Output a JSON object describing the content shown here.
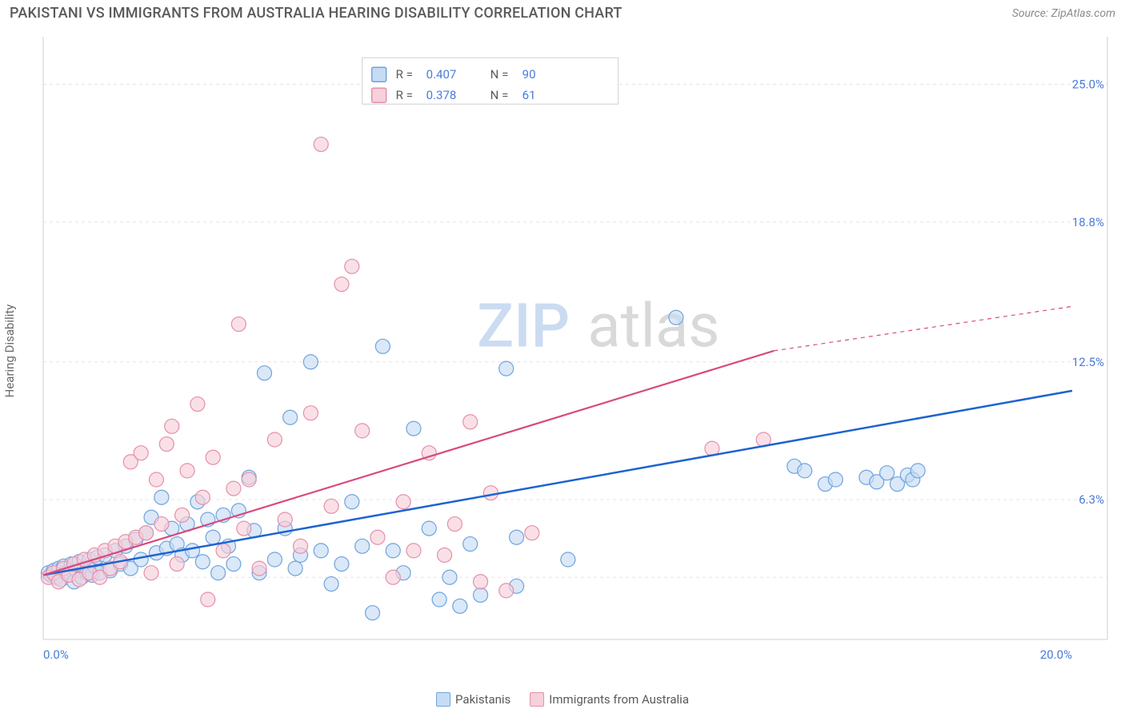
{
  "header": {
    "title": "PAKISTANI VS IMMIGRANTS FROM AUSTRALIA HEARING DISABILITY CORRELATION CHART",
    "source": "Source: ZipAtlas.com"
  },
  "chart": {
    "type": "scatter",
    "y_label": "Hearing Disability",
    "background_color": "#ffffff",
    "grid_color": "#e5e5e5",
    "axis_color": "#cfcfcf",
    "tick_label_color": "#4a7bd8",
    "tick_fontsize": 15,
    "xlim": [
      0,
      20
    ],
    "ylim": [
      0,
      27
    ],
    "x_ticks": [
      {
        "v": 0,
        "label": "0.0%"
      },
      {
        "v": 20,
        "label": "20.0%"
      }
    ],
    "y_ticks": [
      {
        "v": 6.3,
        "label": "6.3%"
      },
      {
        "v": 12.5,
        "label": "12.5%"
      },
      {
        "v": 18.8,
        "label": "18.8%"
      },
      {
        "v": 25.0,
        "label": "25.0%"
      }
    ],
    "y_grid_extra": [
      2.8
    ],
    "watermark": {
      "zip": "ZIP",
      "atlas": "atlas",
      "fontsize": 76
    },
    "series": [
      {
        "name": "Pakistanis",
        "marker_fill": "#c6dcf4",
        "marker_stroke": "#6fa3dd",
        "marker_radius": 9,
        "fill_opacity": 0.65,
        "trend_color": "#1e63d0",
        "trend_width": 2.5,
        "trend_start": {
          "x": 0,
          "y": 2.9
        },
        "trend_end": {
          "x": 20,
          "y": 11.2
        },
        "points": [
          [
            0.1,
            3.0
          ],
          [
            0.15,
            2.9
          ],
          [
            0.2,
            3.1
          ],
          [
            0.25,
            2.8
          ],
          [
            0.3,
            3.2
          ],
          [
            0.35,
            2.7
          ],
          [
            0.4,
            3.3
          ],
          [
            0.45,
            3.0
          ],
          [
            0.5,
            2.9
          ],
          [
            0.55,
            3.4
          ],
          [
            0.6,
            2.6
          ],
          [
            0.65,
            3.1
          ],
          [
            0.7,
            3.5
          ],
          [
            0.75,
            2.8
          ],
          [
            0.8,
            3.2
          ],
          [
            0.85,
            3.0
          ],
          [
            0.9,
            3.6
          ],
          [
            0.95,
            2.9
          ],
          [
            1.0,
            3.3
          ],
          [
            1.05,
            3.7
          ],
          [
            1.1,
            3.0
          ],
          [
            1.2,
            3.8
          ],
          [
            1.3,
            3.1
          ],
          [
            1.4,
            4.0
          ],
          [
            1.5,
            3.4
          ],
          [
            1.6,
            4.2
          ],
          [
            1.7,
            3.2
          ],
          [
            1.8,
            4.5
          ],
          [
            1.9,
            3.6
          ],
          [
            2.0,
            4.8
          ],
          [
            2.1,
            5.5
          ],
          [
            2.2,
            3.9
          ],
          [
            2.3,
            6.4
          ],
          [
            2.4,
            4.1
          ],
          [
            2.5,
            5.0
          ],
          [
            2.6,
            4.3
          ],
          [
            2.7,
            3.8
          ],
          [
            2.8,
            5.2
          ],
          [
            2.9,
            4.0
          ],
          [
            3.0,
            6.2
          ],
          [
            3.1,
            3.5
          ],
          [
            3.2,
            5.4
          ],
          [
            3.3,
            4.6
          ],
          [
            3.4,
            3.0
          ],
          [
            3.5,
            5.6
          ],
          [
            3.6,
            4.2
          ],
          [
            3.7,
            3.4
          ],
          [
            3.8,
            5.8
          ],
          [
            4.0,
            7.3
          ],
          [
            4.1,
            4.9
          ],
          [
            4.2,
            3.0
          ],
          [
            4.3,
            12.0
          ],
          [
            4.5,
            3.6
          ],
          [
            4.7,
            5.0
          ],
          [
            4.8,
            10.0
          ],
          [
            4.9,
            3.2
          ],
          [
            5.0,
            3.8
          ],
          [
            5.2,
            12.5
          ],
          [
            5.4,
            4.0
          ],
          [
            5.6,
            2.5
          ],
          [
            5.8,
            3.4
          ],
          [
            6.0,
            6.2
          ],
          [
            6.2,
            4.2
          ],
          [
            6.4,
            1.2
          ],
          [
            6.6,
            13.2
          ],
          [
            6.8,
            4.0
          ],
          [
            7.0,
            3.0
          ],
          [
            7.2,
            9.5
          ],
          [
            7.5,
            5.0
          ],
          [
            7.7,
            1.8
          ],
          [
            7.9,
            2.8
          ],
          [
            8.1,
            1.5
          ],
          [
            8.3,
            4.3
          ],
          [
            8.5,
            2.0
          ],
          [
            9.2,
            4.6
          ],
          [
            9.0,
            12.2
          ],
          [
            9.2,
            2.4
          ],
          [
            10.2,
            3.6
          ],
          [
            12.3,
            14.5
          ],
          [
            14.6,
            7.8
          ],
          [
            14.8,
            7.6
          ],
          [
            15.2,
            7.0
          ],
          [
            15.4,
            7.2
          ],
          [
            16.0,
            7.3
          ],
          [
            16.2,
            7.1
          ],
          [
            16.4,
            7.5
          ],
          [
            16.6,
            7.0
          ],
          [
            16.8,
            7.4
          ],
          [
            16.9,
            7.2
          ],
          [
            17.0,
            7.6
          ]
        ]
      },
      {
        "name": "Immigrants from Australia",
        "marker_fill": "#f6d0da",
        "marker_stroke": "#e68fa9",
        "marker_radius": 9,
        "fill_opacity": 0.65,
        "trend_color": "#d84a7c",
        "trend_width": 2.2,
        "trend_start": {
          "x": 0,
          "y": 2.9
        },
        "trend_solid_end": {
          "x": 14.2,
          "y": 13.0
        },
        "trend_dash_end": {
          "x": 20,
          "y": 15.0
        },
        "points": [
          [
            0.1,
            2.8
          ],
          [
            0.2,
            3.0
          ],
          [
            0.3,
            2.6
          ],
          [
            0.4,
            3.2
          ],
          [
            0.5,
            2.9
          ],
          [
            0.6,
            3.4
          ],
          [
            0.7,
            2.7
          ],
          [
            0.8,
            3.6
          ],
          [
            0.9,
            3.0
          ],
          [
            1.0,
            3.8
          ],
          [
            1.1,
            2.8
          ],
          [
            1.2,
            4.0
          ],
          [
            1.3,
            3.2
          ],
          [
            1.4,
            4.2
          ],
          [
            1.5,
            3.5
          ],
          [
            1.6,
            4.4
          ],
          [
            1.7,
            8.0
          ],
          [
            1.8,
            4.6
          ],
          [
            1.9,
            8.4
          ],
          [
            2.0,
            4.8
          ],
          [
            2.1,
            3.0
          ],
          [
            2.2,
            7.2
          ],
          [
            2.3,
            5.2
          ],
          [
            2.4,
            8.8
          ],
          [
            2.5,
            9.6
          ],
          [
            2.6,
            3.4
          ],
          [
            2.7,
            5.6
          ],
          [
            2.8,
            7.6
          ],
          [
            3.0,
            10.6
          ],
          [
            3.1,
            6.4
          ],
          [
            3.2,
            1.8
          ],
          [
            3.3,
            8.2
          ],
          [
            3.5,
            4.0
          ],
          [
            3.7,
            6.8
          ],
          [
            3.8,
            14.2
          ],
          [
            3.9,
            5.0
          ],
          [
            4.0,
            7.2
          ],
          [
            4.2,
            3.2
          ],
          [
            4.5,
            9.0
          ],
          [
            4.7,
            5.4
          ],
          [
            5.0,
            4.2
          ],
          [
            5.2,
            10.2
          ],
          [
            5.4,
            22.3
          ],
          [
            5.6,
            6.0
          ],
          [
            5.8,
            16.0
          ],
          [
            6.0,
            16.8
          ],
          [
            6.2,
            9.4
          ],
          [
            6.5,
            4.6
          ],
          [
            6.8,
            2.8
          ],
          [
            7.0,
            6.2
          ],
          [
            7.2,
            4.0
          ],
          [
            7.5,
            8.4
          ],
          [
            7.8,
            3.8
          ],
          [
            8.0,
            5.2
          ],
          [
            8.3,
            9.8
          ],
          [
            8.5,
            2.6
          ],
          [
            8.7,
            6.6
          ],
          [
            9.0,
            2.2
          ],
          [
            9.5,
            4.8
          ],
          [
            13.0,
            8.6
          ],
          [
            14.0,
            9.0
          ]
        ]
      }
    ],
    "stats_box": {
      "rows": [
        {
          "swatch_fill": "#c6dcf4",
          "swatch_stroke": "#6fa3dd",
          "r_label": "R =",
          "r_val": "0.407",
          "n_label": "N =",
          "n_val": "90"
        },
        {
          "swatch_fill": "#f6d0da",
          "swatch_stroke": "#e68fa9",
          "r_label": "R =",
          "r_val": "0.378",
          "n_label": "N =",
          "n_val": "61"
        }
      ]
    },
    "bottom_legend": [
      {
        "swatch_fill": "#c6dcf4",
        "swatch_stroke": "#6fa3dd",
        "label": "Pakistanis"
      },
      {
        "swatch_fill": "#f6d0da",
        "swatch_stroke": "#e68fa9",
        "label": "Immigrants from Australia"
      }
    ]
  }
}
